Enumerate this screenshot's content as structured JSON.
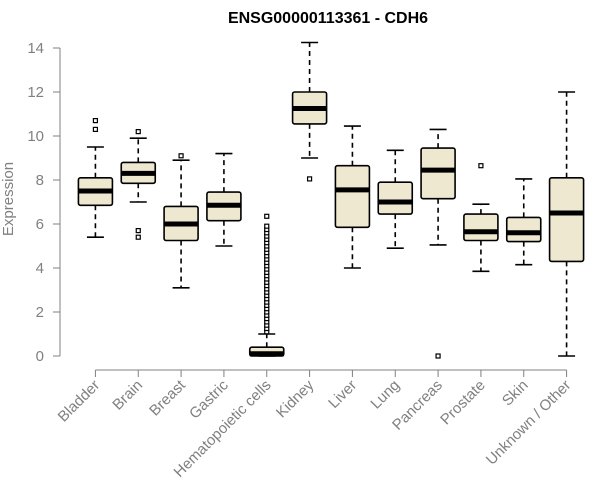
{
  "chart_data": {
    "type": "boxplot",
    "title": "ENSG00000113361 - CDH6",
    "xlabel": "",
    "ylabel": "Expression",
    "ylim": [
      0,
      14
    ],
    "yticks": [
      0,
      2,
      4,
      6,
      8,
      10,
      12,
      14
    ],
    "grid": false,
    "box_fill": "#efe8d0",
    "box_stroke": "#000000",
    "median_color": "#000000",
    "axis_color": "#808080",
    "categories": [
      "Bladder",
      "Brain",
      "Breast",
      "Gastric",
      "Hematopoietic cells",
      "Kidney",
      "Liver",
      "Lung",
      "Pancreas",
      "Prostate",
      "Skin",
      "Unknown / Other"
    ],
    "boxes": [
      {
        "category": "Bladder",
        "whisker_low": 5.4,
        "q1": 6.85,
        "median": 7.5,
        "q3": 8.1,
        "whisker_high": 9.5,
        "outliers": [
          10.3,
          10.7
        ]
      },
      {
        "category": "Brain",
        "whisker_low": 7.0,
        "q1": 7.85,
        "median": 8.3,
        "q3": 8.8,
        "whisker_high": 9.9,
        "outliers": [
          5.4,
          5.7,
          10.2
        ]
      },
      {
        "category": "Breast",
        "whisker_low": 3.1,
        "q1": 5.25,
        "median": 6.0,
        "q3": 6.8,
        "whisker_high": 8.9,
        "outliers": [
          9.1
        ]
      },
      {
        "category": "Gastric",
        "whisker_low": 5.0,
        "q1": 6.15,
        "median": 6.85,
        "q3": 7.45,
        "whisker_high": 9.2,
        "outliers": []
      },
      {
        "category": "Hematopoietic cells",
        "whisker_low": 0.0,
        "q1": 0.0,
        "median": 0.1,
        "q3": 0.4,
        "whisker_high": 1.0,
        "outliers": [
          1.1,
          1.25,
          1.4,
          1.55,
          1.7,
          1.85,
          2.0,
          2.15,
          2.3,
          2.45,
          2.6,
          2.75,
          2.9,
          3.05,
          3.2,
          3.35,
          3.5,
          3.65,
          3.8,
          3.95,
          4.1,
          4.25,
          4.4,
          4.55,
          4.7,
          4.85,
          5.0,
          5.15,
          5.3,
          5.45,
          5.6,
          5.75,
          5.9,
          6.35
        ]
      },
      {
        "category": "Kidney",
        "whisker_low": 9.0,
        "q1": 10.55,
        "median": 11.25,
        "q3": 12.0,
        "whisker_high": 14.25,
        "outliers": [
          8.05
        ]
      },
      {
        "category": "Liver",
        "whisker_low": 4.0,
        "q1": 5.85,
        "median": 7.55,
        "q3": 8.65,
        "whisker_high": 10.45,
        "outliers": []
      },
      {
        "category": "Lung",
        "whisker_low": 4.9,
        "q1": 6.45,
        "median": 7.0,
        "q3": 7.9,
        "whisker_high": 9.35,
        "outliers": []
      },
      {
        "category": "Pancreas",
        "whisker_low": 5.05,
        "q1": 7.15,
        "median": 8.45,
        "q3": 9.45,
        "whisker_high": 10.3,
        "outliers": [
          0.0
        ]
      },
      {
        "category": "Prostate",
        "whisker_low": 3.85,
        "q1": 5.25,
        "median": 5.65,
        "q3": 6.45,
        "whisker_high": 6.9,
        "outliers": [
          8.65
        ]
      },
      {
        "category": "Skin",
        "whisker_low": 4.15,
        "q1": 5.2,
        "median": 5.6,
        "q3": 6.3,
        "whisker_high": 8.05,
        "outliers": []
      },
      {
        "category": "Unknown / Other",
        "whisker_low": 0.0,
        "q1": 4.3,
        "median": 6.5,
        "q3": 8.1,
        "whisker_high": 12.0,
        "outliers": []
      }
    ]
  }
}
